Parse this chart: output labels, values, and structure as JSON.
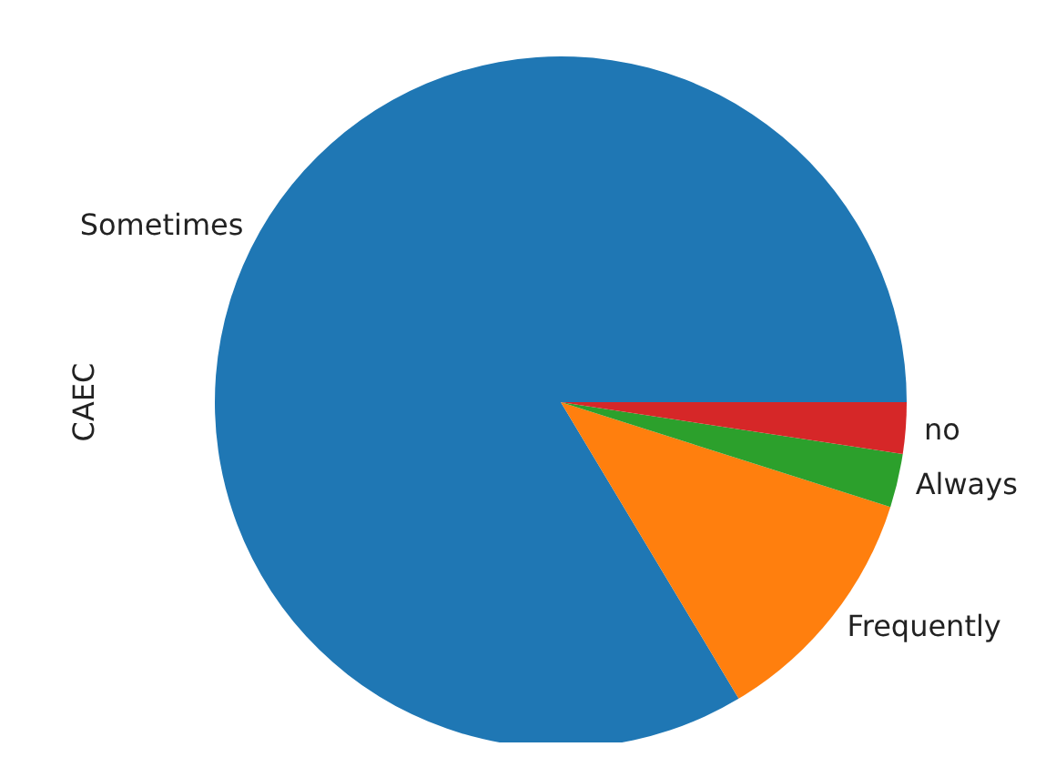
{
  "chart_data": {
    "type": "pie",
    "ylabel": "CAEC",
    "categories": [
      "Sometimes",
      "Frequently",
      "Always",
      "no"
    ],
    "values": [
      83.6,
      11.5,
      2.5,
      2.4
    ],
    "colors": [
      "#1f77b4",
      "#ff7f0e",
      "#2ca02c",
      "#d62728"
    ]
  }
}
